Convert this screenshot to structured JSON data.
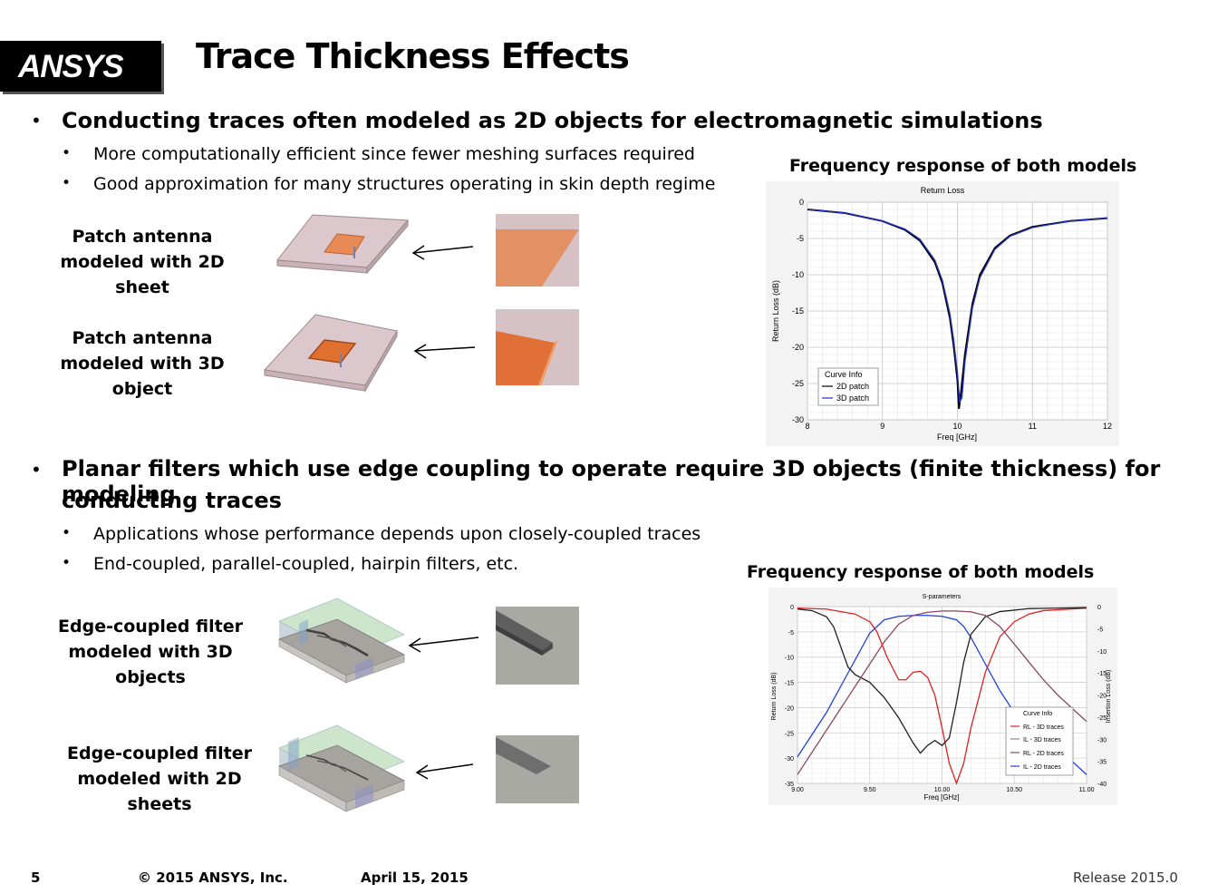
{
  "header": {
    "logo_text": "ANSYS",
    "title": "Trace Thickness Effects"
  },
  "section1": {
    "bullet": "Conducting traces often modeled as 2D objects for electromagnetic simulations",
    "subbullets": [
      "More computationally efficient since fewer meshing surfaces required",
      "Good approximation for many structures operating in skin depth regime"
    ],
    "labels": [
      "Patch antenna modeled with 2D sheet",
      "Patch antenna modeled with 3D object"
    ],
    "label_lines": [
      [
        "Patch antenna",
        "modeled with 2D sheet"
      ],
      [
        "Patch antenna",
        "modeled with 3D object"
      ]
    ],
    "chart_caption": "Frequency response of both models"
  },
  "section2": {
    "bullet_line1": "Planar filters which use edge coupling to operate require 3D objects (finite thickness) for modeling",
    "bullet_line2": "conducting traces",
    "subbullets": [
      "Applications whose performance depends upon closely-coupled traces",
      "End-coupled, parallel-coupled, hairpin filters, etc."
    ],
    "label_lines": [
      [
        "Edge-coupled filter",
        "modeled with 3D objects"
      ],
      [
        "Edge-coupled filter",
        "modeled with 2D sheets"
      ]
    ],
    "chart_caption": "Frequency response of both models"
  },
  "footer": {
    "page": "5",
    "copyright": "© 2015 ANSYS, Inc.",
    "date": "April 15, 2015",
    "release": "Release 2015.0"
  },
  "colors": {
    "trace_orange": "#e07a40",
    "substrate": "#d8c3c8",
    "rl3d": "#e02020",
    "il3d": "#2040e0",
    "rl2d": "#202020",
    "il2d": "#8a4a60"
  },
  "chart_data": [
    {
      "type": "line",
      "title": "Return Loss",
      "xlabel": "Freq [GHz]",
      "ylabel": "Return Loss (dB)",
      "xlim": [
        8,
        12
      ],
      "ylim": [
        -30,
        0
      ],
      "xticks": [
        8,
        9,
        10,
        11,
        12
      ],
      "yticks": [
        0,
        -5,
        -10,
        -15,
        -20,
        -25,
        -30
      ],
      "legend_title": "Curve Info",
      "legend_position": "bottom-left",
      "grid": true,
      "series": [
        {
          "name": "2D patch",
          "color": "#000000",
          "x": [
            8.0,
            8.5,
            9.0,
            9.3,
            9.5,
            9.7,
            9.8,
            9.9,
            9.95,
            10.0,
            10.02,
            10.05,
            10.1,
            10.2,
            10.3,
            10.5,
            10.7,
            11.0,
            11.5,
            12.0
          ],
          "y": [
            -1.0,
            -1.5,
            -2.6,
            -3.8,
            -5.3,
            -8.3,
            -11.2,
            -16.0,
            -19.8,
            -24.5,
            -28.5,
            -26.0,
            -21.0,
            -14.0,
            -10.0,
            -6.3,
            -4.6,
            -3.4,
            -2.6,
            -2.2
          ]
        },
        {
          "name": "3D patch",
          "color": "#2030d0",
          "x": [
            8.0,
            8.5,
            9.0,
            9.3,
            9.5,
            9.7,
            9.8,
            9.9,
            9.95,
            10.0,
            10.03,
            10.06,
            10.1,
            10.2,
            10.3,
            10.5,
            10.7,
            11.0,
            11.5,
            12.0
          ],
          "y": [
            -1.0,
            -1.5,
            -2.6,
            -3.7,
            -5.1,
            -8.0,
            -10.8,
            -15.4,
            -19.0,
            -23.5,
            -27.5,
            -27.0,
            -22.0,
            -14.6,
            -10.4,
            -6.5,
            -4.7,
            -3.5,
            -2.6,
            -2.2
          ]
        }
      ]
    },
    {
      "type": "line",
      "title": "S-parameters",
      "xlabel": "Freq [GHz]",
      "ylabel": "Return Loss (dB)",
      "y2label": "Insertion Loss (dB)",
      "xlim": [
        9.0,
        11.0
      ],
      "ylim": [
        -35,
        0
      ],
      "y2lim": [
        -40,
        0
      ],
      "xticks": [
        "9.00",
        "9.50",
        "10.00",
        "10.50",
        "11.00"
      ],
      "yticks": [
        0,
        -5,
        -10,
        -15,
        -20,
        -25,
        -30,
        -35
      ],
      "y2ticks": [
        0,
        -5,
        -10,
        -15,
        -20,
        -25,
        -30,
        -35,
        -40
      ],
      "legend_title": "Curve Info",
      "legend_position": "bottom-right",
      "grid": true,
      "series": [
        {
          "name": "RL - 3D traces",
          "color": "#e02020",
          "axis": "left",
          "x": [
            9.0,
            9.2,
            9.4,
            9.5,
            9.55,
            9.62,
            9.7,
            9.75,
            9.8,
            9.85,
            9.9,
            9.95,
            10.0,
            10.05,
            10.1,
            10.15,
            10.2,
            10.3,
            10.4,
            10.5,
            10.6,
            10.7,
            11.0
          ],
          "y": [
            -0.3,
            -0.5,
            -1.5,
            -3.0,
            -5.0,
            -10.0,
            -14.5,
            -14.5,
            -13.0,
            -12.8,
            -14.0,
            -17.5,
            -24.0,
            -31.0,
            -35.0,
            -31.0,
            -24.0,
            -13.0,
            -6.0,
            -3.0,
            -1.5,
            -0.8,
            -0.3
          ]
        },
        {
          "name": "IL - 3D traces",
          "color": "#2040e0",
          "axis": "right",
          "x": [
            9.0,
            9.1,
            9.2,
            9.3,
            9.4,
            9.5,
            9.6,
            9.7,
            9.8,
            9.9,
            10.0,
            10.1,
            10.15,
            10.2,
            10.3,
            10.4,
            10.5,
            10.6,
            10.7,
            10.8,
            10.9,
            11.0
          ],
          "y": [
            -34.0,
            -29.0,
            -24.0,
            -18.0,
            -12.0,
            -6.0,
            -3.0,
            -2.2,
            -2.0,
            -2.0,
            -2.2,
            -3.0,
            -4.5,
            -7.0,
            -13.0,
            -19.0,
            -24.0,
            -27.5,
            -30.5,
            -33.0,
            -35.0,
            -38.0
          ]
        },
        {
          "name": "RL - 2D traces",
          "color": "#202020",
          "axis": "left",
          "x": [
            9.0,
            9.1,
            9.2,
            9.25,
            9.3,
            9.35,
            9.4,
            9.5,
            9.6,
            9.7,
            9.8,
            9.85,
            9.9,
            9.95,
            10.0,
            10.05,
            10.1,
            10.15,
            10.2,
            10.3,
            10.4,
            10.6,
            11.0
          ],
          "y": [
            -0.5,
            -0.8,
            -2.0,
            -4.0,
            -8.0,
            -12.0,
            -13.5,
            -15.0,
            -18.0,
            -22.0,
            -27.0,
            -29.0,
            -27.5,
            -26.5,
            -27.5,
            -26.0,
            -19.0,
            -11.0,
            -5.5,
            -2.0,
            -1.0,
            -0.4,
            -0.2
          ]
        },
        {
          "name": "IL - 2D traces",
          "color": "#8a4a60",
          "axis": "right",
          "x": [
            9.0,
            9.1,
            9.2,
            9.3,
            9.4,
            9.5,
            9.6,
            9.7,
            9.8,
            9.9,
            10.0,
            10.1,
            10.2,
            10.3,
            10.4,
            10.5,
            10.6,
            10.7,
            10.8,
            10.9,
            11.0
          ],
          "y": [
            -38.0,
            -33.0,
            -28.0,
            -23.0,
            -18.0,
            -13.0,
            -8.0,
            -4.0,
            -2.0,
            -1.3,
            -1.0,
            -1.0,
            -1.2,
            -2.0,
            -4.5,
            -8.5,
            -12.5,
            -16.5,
            -20.0,
            -23.0,
            -26.0
          ]
        }
      ]
    }
  ]
}
